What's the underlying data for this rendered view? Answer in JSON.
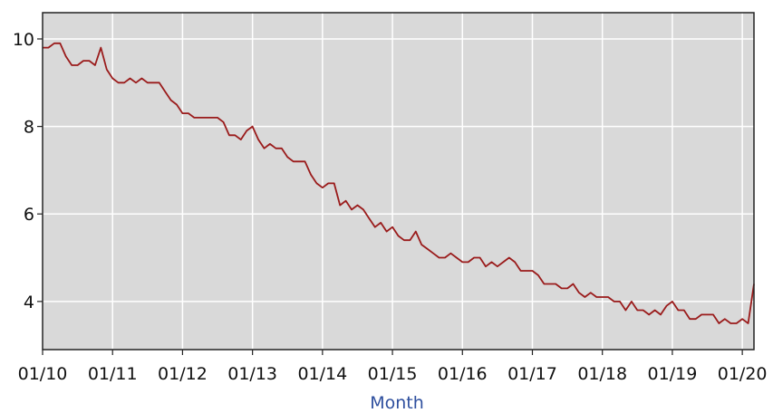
{
  "chart_data": {
    "type": "line",
    "title": "",
    "xlabel": "Month",
    "ylabel": "",
    "x_ticks": [
      "01/10",
      "01/11",
      "01/12",
      "01/13",
      "01/14",
      "01/15",
      "01/16",
      "01/17",
      "01/18",
      "01/19",
      "01/20"
    ],
    "y_ticks": [
      4,
      6,
      8,
      10
    ],
    "xlim": [
      "2010-01",
      "2020-03"
    ],
    "ylim": [
      2.9,
      10.6
    ],
    "grid": true,
    "colors": {
      "plot_background": "#d9d9d9",
      "grid": "#ffffff",
      "line": "#9a1b1b",
      "axis_title": "#2e4f9e"
    },
    "series": [
      {
        "x": [
          "2010-01",
          "2010-02",
          "2010-03",
          "2010-04",
          "2010-05",
          "2010-06",
          "2010-07",
          "2010-08",
          "2010-09",
          "2010-10",
          "2010-11",
          "2010-12",
          "2011-01",
          "2011-02",
          "2011-03",
          "2011-04",
          "2011-05",
          "2011-06",
          "2011-07",
          "2011-08",
          "2011-09",
          "2011-10",
          "2011-11",
          "2011-12",
          "2012-01",
          "2012-02",
          "2012-03",
          "2012-04",
          "2012-05",
          "2012-06",
          "2012-07",
          "2012-08",
          "2012-09",
          "2012-10",
          "2012-11",
          "2012-12",
          "2013-01",
          "2013-02",
          "2013-03",
          "2013-04",
          "2013-05",
          "2013-06",
          "2013-07",
          "2013-08",
          "2013-09",
          "2013-10",
          "2013-11",
          "2013-12",
          "2014-01",
          "2014-02",
          "2014-03",
          "2014-04",
          "2014-05",
          "2014-06",
          "2014-07",
          "2014-08",
          "2014-09",
          "2014-10",
          "2014-11",
          "2014-12",
          "2015-01",
          "2015-02",
          "2015-03",
          "2015-04",
          "2015-05",
          "2015-06",
          "2015-07",
          "2015-08",
          "2015-09",
          "2015-10",
          "2015-11",
          "2015-12",
          "2016-01",
          "2016-02",
          "2016-03",
          "2016-04",
          "2016-05",
          "2016-06",
          "2016-07",
          "2016-08",
          "2016-09",
          "2016-10",
          "2016-11",
          "2016-12",
          "2017-01",
          "2017-02",
          "2017-03",
          "2017-04",
          "2017-05",
          "2017-06",
          "2017-07",
          "2017-08",
          "2017-09",
          "2017-10",
          "2017-11",
          "2017-12",
          "2018-01",
          "2018-02",
          "2018-03",
          "2018-04",
          "2018-05",
          "2018-06",
          "2018-07",
          "2018-08",
          "2018-09",
          "2018-10",
          "2018-11",
          "2018-12",
          "2019-01",
          "2019-02",
          "2019-03",
          "2019-04",
          "2019-05",
          "2019-06",
          "2019-07",
          "2019-08",
          "2019-09",
          "2019-10",
          "2019-11",
          "2019-12",
          "2020-01",
          "2020-02",
          "2020-03"
        ],
        "values": [
          9.8,
          9.8,
          9.9,
          9.9,
          9.6,
          9.4,
          9.4,
          9.5,
          9.5,
          9.4,
          9.8,
          9.3,
          9.1,
          9.0,
          9.0,
          9.1,
          9.0,
          9.1,
          9.0,
          9.0,
          9.0,
          8.8,
          8.6,
          8.5,
          8.3,
          8.3,
          8.2,
          8.2,
          8.2,
          8.2,
          8.2,
          8.1,
          7.8,
          7.8,
          7.7,
          7.9,
          8.0,
          7.7,
          7.5,
          7.6,
          7.5,
          7.5,
          7.3,
          7.2,
          7.2,
          7.2,
          6.9,
          6.7,
          6.6,
          6.7,
          6.7,
          6.2,
          6.3,
          6.1,
          6.2,
          6.1,
          5.9,
          5.7,
          5.8,
          5.6,
          5.7,
          5.5,
          5.4,
          5.4,
          5.6,
          5.3,
          5.2,
          5.1,
          5.0,
          5.0,
          5.1,
          5.0,
          4.9,
          4.9,
          5.0,
          5.0,
          4.8,
          4.9,
          4.8,
          4.9,
          5.0,
          4.9,
          4.7,
          4.7,
          4.7,
          4.6,
          4.4,
          4.4,
          4.4,
          4.3,
          4.3,
          4.4,
          4.2,
          4.1,
          4.2,
          4.1,
          4.1,
          4.1,
          4.0,
          4.0,
          3.8,
          4.0,
          3.8,
          3.8,
          3.7,
          3.8,
          3.7,
          3.9,
          4.0,
          3.8,
          3.8,
          3.6,
          3.6,
          3.7,
          3.7,
          3.7,
          3.5,
          3.6,
          3.5,
          3.5,
          3.6,
          3.5,
          4.4
        ]
      }
    ]
  }
}
